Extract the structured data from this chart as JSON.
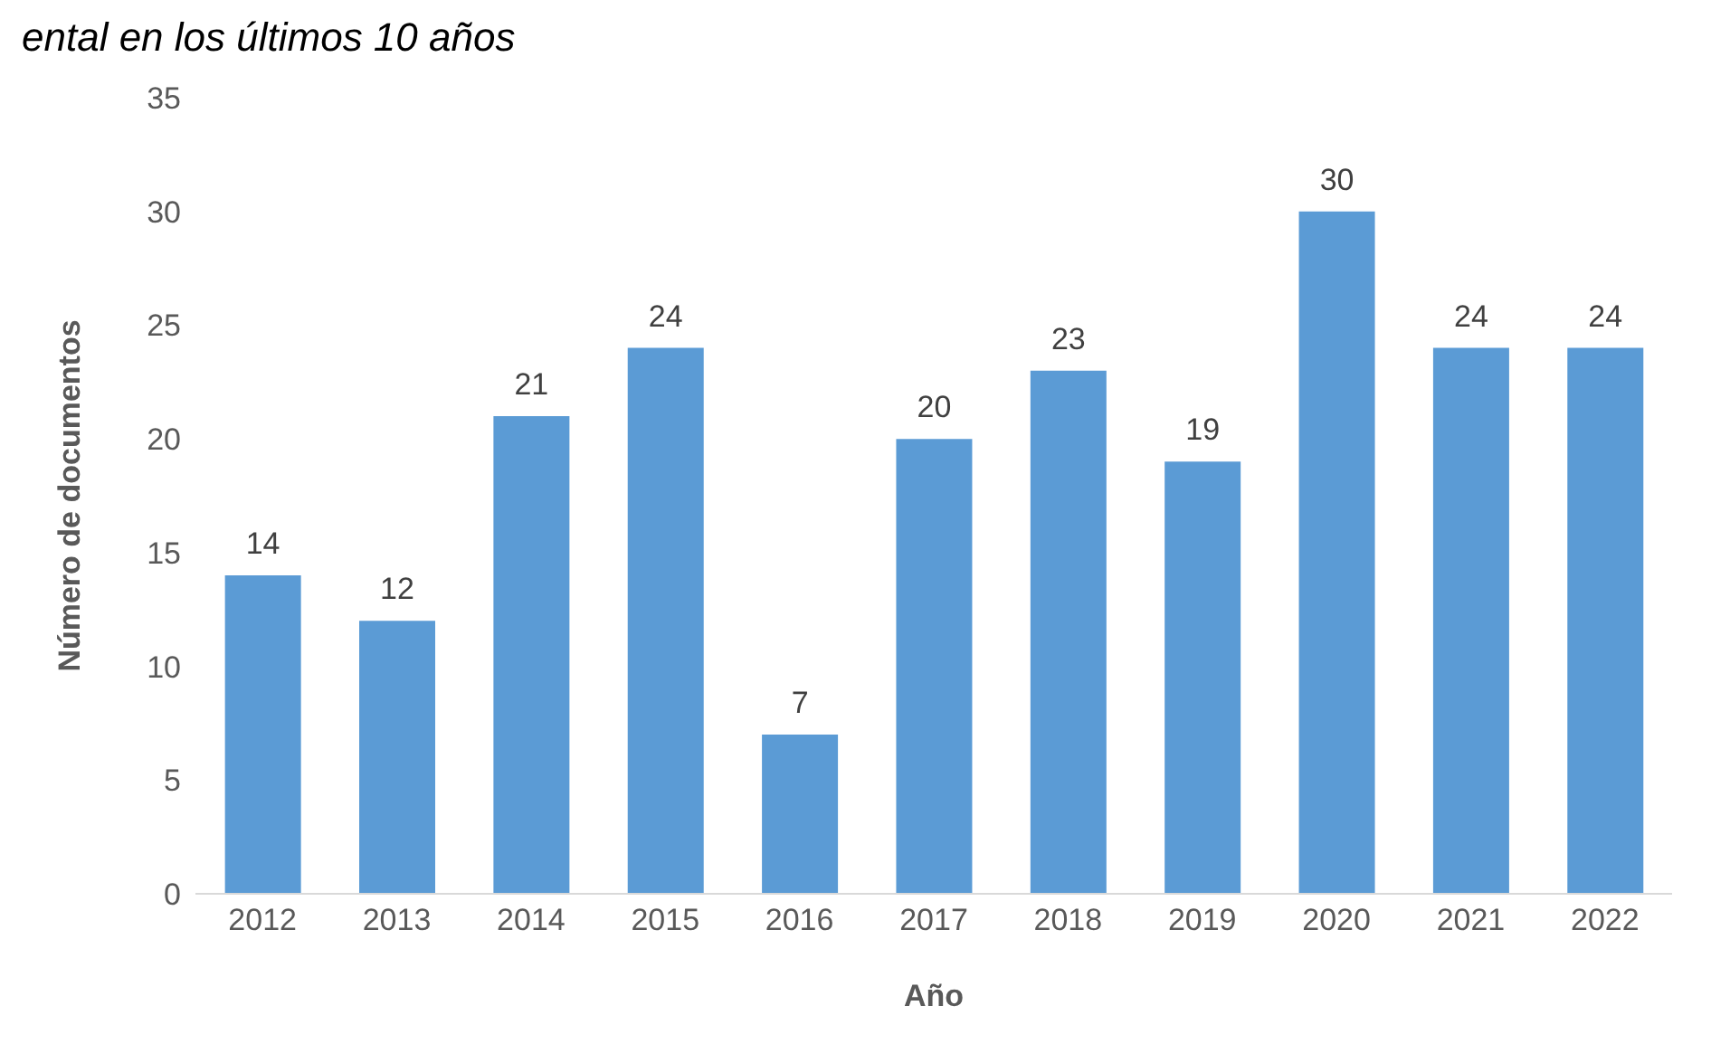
{
  "chart_data": {
    "type": "bar",
    "title": "ental en los últimos 10 años",
    "xlabel": "Año",
    "ylabel": "Número de documentos",
    "categories": [
      "2012",
      "2013",
      "2014",
      "2015",
      "2016",
      "2017",
      "2018",
      "2019",
      "2020",
      "2021",
      "2022"
    ],
    "values": [
      14,
      12,
      21,
      24,
      7,
      20,
      23,
      19,
      30,
      24,
      24
    ],
    "color": "#5b9bd5",
    "ylim": [
      0,
      35
    ],
    "yticks": [
      0,
      5,
      10,
      15,
      20,
      25,
      30,
      35
    ],
    "grid": false,
    "data_labels": true
  }
}
